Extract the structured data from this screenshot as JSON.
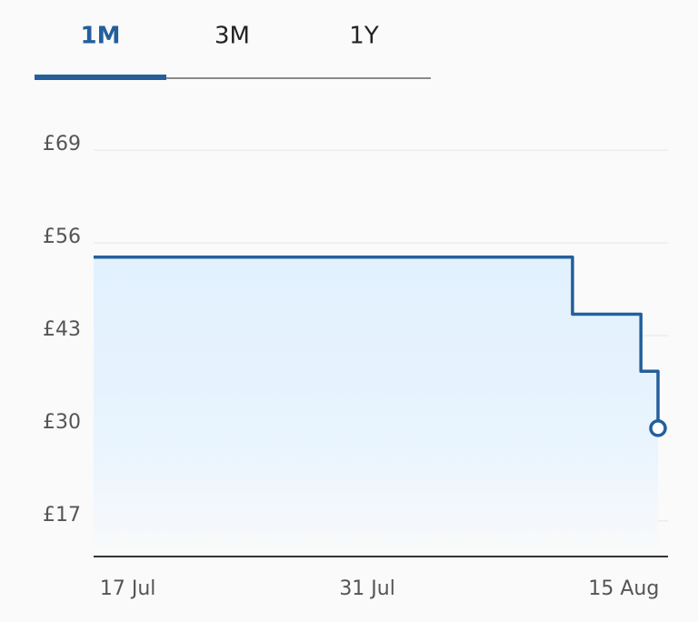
{
  "tabs": {
    "items": [
      "1M",
      "3M",
      "1Y"
    ],
    "active": 0
  },
  "chart_data": {
    "type": "step-line",
    "x": [
      "15 Jul",
      "12 Aug",
      "16 Aug",
      "17 Aug"
    ],
    "values": [
      54,
      46,
      38,
      30
    ],
    "color": "#245f9c",
    "xlim": [
      "15 Jul",
      "17 Aug"
    ],
    "xticks": [
      "17 Jul",
      "31 Jul",
      "15 Aug"
    ],
    "ylim": [
      12,
      74
    ],
    "yticks": [
      {
        "value": 17,
        "label": "£17"
      },
      {
        "value": 30,
        "label": "£30"
      },
      {
        "value": 43,
        "label": "£43"
      },
      {
        "value": 56,
        "label": "£56"
      },
      {
        "value": 69,
        "label": "£69"
      }
    ],
    "grid": true
  }
}
